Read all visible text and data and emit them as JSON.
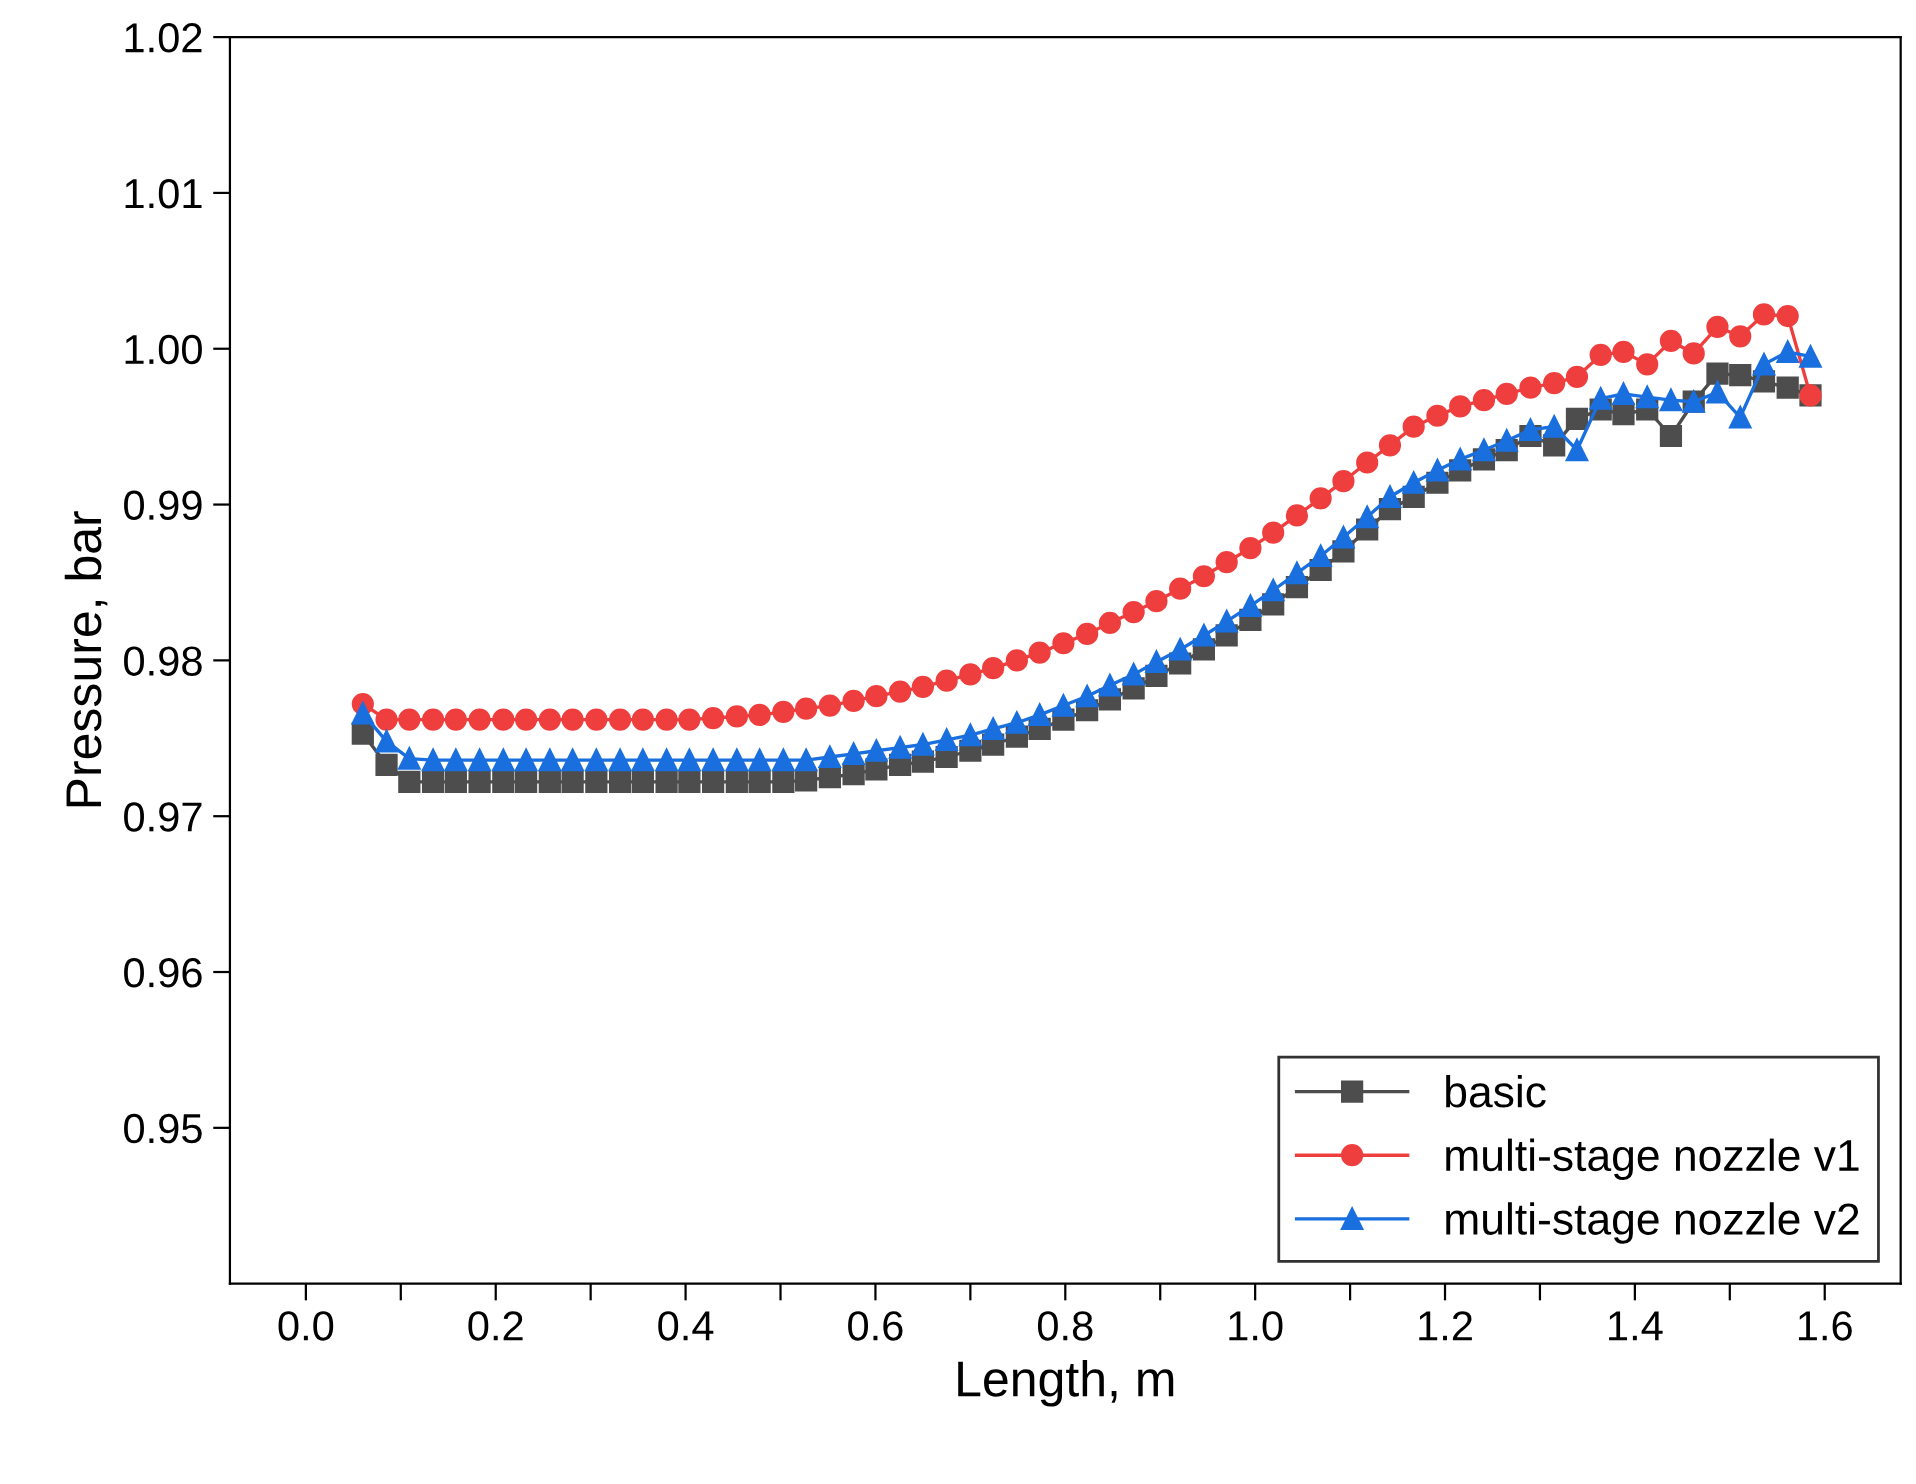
{
  "chart_data": {
    "type": "line",
    "xlabel": "Length, m",
    "ylabel": "Pressure, bar",
    "xlim": [
      -0.08,
      1.68
    ],
    "ylim": [
      0.94,
      1.02
    ],
    "xticks": [
      {
        "value": 0.0,
        "label": "0.0"
      },
      {
        "value": 0.1,
        "label": null
      },
      0.2,
      {
        "value": 0.3,
        "label": null
      },
      0.4,
      {
        "value": 0.5,
        "label": null
      },
      0.6,
      {
        "value": 0.7,
        "label": null
      },
      0.8,
      {
        "value": 0.9,
        "label": null
      },
      {
        "value": 1.0,
        "label": "1.0"
      },
      {
        "value": 1.1,
        "label": null
      },
      1.2,
      {
        "value": 1.3,
        "label": null
      },
      1.4,
      {
        "value": 1.5,
        "label": null
      },
      1.6
    ],
    "yticks": [
      {
        "value": 0.95,
        "label": "0.95"
      },
      {
        "value": 0.96,
        "label": "0.96"
      },
      {
        "value": 0.97,
        "label": "0.97"
      },
      {
        "value": 0.98,
        "label": "0.98"
      },
      {
        "value": 0.99,
        "label": "0.99"
      },
      {
        "value": 1.0,
        "label": "1.00"
      },
      {
        "value": 1.01,
        "label": "1.01"
      },
      {
        "value": 1.02,
        "label": "1.02"
      }
    ],
    "grid": false,
    "legend": "bottom right",
    "line_style": "solid",
    "x": [
      0.06,
      0.085,
      0.109,
      0.134,
      0.158,
      0.183,
      0.208,
      0.232,
      0.257,
      0.281,
      0.306,
      0.331,
      0.355,
      0.38,
      0.404,
      0.429,
      0.454,
      0.478,
      0.503,
      0.527,
      0.552,
      0.577,
      0.601,
      0.626,
      0.65,
      0.675,
      0.7,
      0.724,
      0.749,
      0.773,
      0.798,
      0.823,
      0.847,
      0.872,
      0.896,
      0.921,
      0.946,
      0.97,
      0.995,
      1.019,
      1.044,
      1.069,
      1.093,
      1.118,
      1.142,
      1.167,
      1.192,
      1.216,
      1.241,
      1.265,
      1.29,
      1.315,
      1.339,
      1.364,
      1.388,
      1.413,
      1.438,
      1.462,
      1.487,
      1.511,
      1.536,
      1.561,
      1.585
    ],
    "series": [
      {
        "name": "basic",
        "color": "#4d4d4d",
        "marker": "square",
        "values": [
          0.9753,
          0.9733,
          0.9722,
          0.9722,
          0.9722,
          0.9722,
          0.9722,
          0.9722,
          0.9722,
          0.9722,
          0.9722,
          0.9722,
          0.9722,
          0.9722,
          0.9722,
          0.9722,
          0.9722,
          0.9722,
          0.9722,
          0.9723,
          0.9725,
          0.9727,
          0.973,
          0.9733,
          0.9735,
          0.9738,
          0.9742,
          0.9746,
          0.9751,
          0.9756,
          0.9762,
          0.9768,
          0.9775,
          0.9782,
          0.979,
          0.9798,
          0.9807,
          0.9816,
          0.9826,
          0.9836,
          0.9847,
          0.9858,
          0.987,
          0.9884,
          0.9897,
          0.9905,
          0.9914,
          0.9922,
          0.9929,
          0.9935,
          0.9944,
          0.9938,
          0.9955,
          0.9961,
          0.9958,
          0.9961,
          0.9944,
          0.9966,
          0.9984,
          0.9983,
          0.9979,
          0.9975,
          0.997
        ]
      },
      {
        "name": "multi-stage nozzle v1",
        "color": "#ef3e3e",
        "marker": "circle",
        "values": [
          0.9772,
          0.9762,
          0.9762,
          0.9762,
          0.9762,
          0.9762,
          0.9762,
          0.9762,
          0.9762,
          0.9762,
          0.9762,
          0.9762,
          0.9762,
          0.9762,
          0.9762,
          0.9763,
          0.9764,
          0.9765,
          0.9767,
          0.9769,
          0.9771,
          0.9774,
          0.9777,
          0.978,
          0.9783,
          0.9787,
          0.9791,
          0.9795,
          0.98,
          0.9805,
          0.9811,
          0.9817,
          0.9824,
          0.9831,
          0.9838,
          0.9846,
          0.9854,
          0.9863,
          0.9872,
          0.9882,
          0.9893,
          0.9904,
          0.9915,
          0.9927,
          0.9938,
          0.995,
          0.9957,
          0.9963,
          0.9967,
          0.9971,
          0.9975,
          0.9978,
          0.9982,
          0.9996,
          0.9998,
          0.999,
          1.0005,
          0.9997,
          1.0014,
          1.0008,
          1.0022,
          1.0021,
          0.997
        ]
      },
      {
        "name": "multi-stage nozzle v2",
        "color": "#1a6fdf",
        "marker": "triangle",
        "values": [
          0.9766,
          0.9748,
          0.9737,
          0.9736,
          0.9736,
          0.9736,
          0.9736,
          0.9736,
          0.9736,
          0.9736,
          0.9736,
          0.9736,
          0.9736,
          0.9736,
          0.9736,
          0.9736,
          0.9736,
          0.9736,
          0.9736,
          0.9736,
          0.9738,
          0.974,
          0.9742,
          0.9744,
          0.9746,
          0.9749,
          0.9752,
          0.9756,
          0.976,
          0.9765,
          0.9771,
          0.9777,
          0.9784,
          0.9791,
          0.9799,
          0.9807,
          0.9816,
          0.9825,
          0.9835,
          0.9845,
          0.9856,
          0.9867,
          0.9879,
          0.9892,
          0.9905,
          0.9914,
          0.9922,
          0.9929,
          0.9935,
          0.9941,
          0.9948,
          0.995,
          0.9935,
          0.9968,
          0.9971,
          0.9969,
          0.9967,
          0.9966,
          0.9972,
          0.9956,
          0.999,
          0.9998,
          0.9995
        ]
      }
    ]
  }
}
